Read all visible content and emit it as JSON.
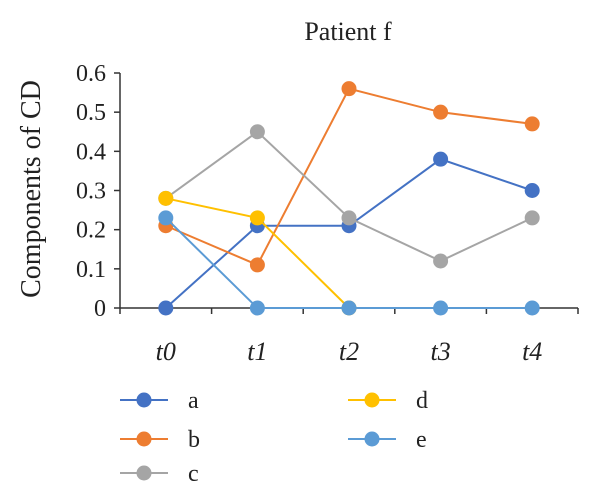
{
  "chart_data": {
    "type": "line",
    "title": "Patient f",
    "ylabel": "Components of CD",
    "xlabel": "",
    "categories": [
      "t0",
      "t1",
      "t2",
      "t3",
      "t4"
    ],
    "yticks": [
      "0",
      "0.1",
      "0.2",
      "0.3",
      "0.4",
      "0.5",
      "0.6"
    ],
    "ylim": [
      0,
      0.6
    ],
    "grid": false,
    "legend": "bottom",
    "series": [
      {
        "name": "a",
        "color": "#4472C4",
        "values": [
          0.0,
          0.21,
          0.21,
          0.38,
          0.3
        ]
      },
      {
        "name": "b",
        "color": "#ED7D31",
        "values": [
          0.21,
          0.11,
          0.56,
          0.5,
          0.47
        ]
      },
      {
        "name": "c",
        "color": "#A5A5A5",
        "values": [
          0.28,
          0.45,
          0.23,
          0.12,
          0.23
        ]
      },
      {
        "name": "d",
        "color": "#FFC000",
        "values": [
          0.28,
          0.23,
          0.0,
          null,
          null
        ]
      },
      {
        "name": "e",
        "color": "#5B9BD5",
        "values": [
          0.23,
          0.0,
          0.0,
          0.0,
          0.0
        ]
      }
    ]
  }
}
